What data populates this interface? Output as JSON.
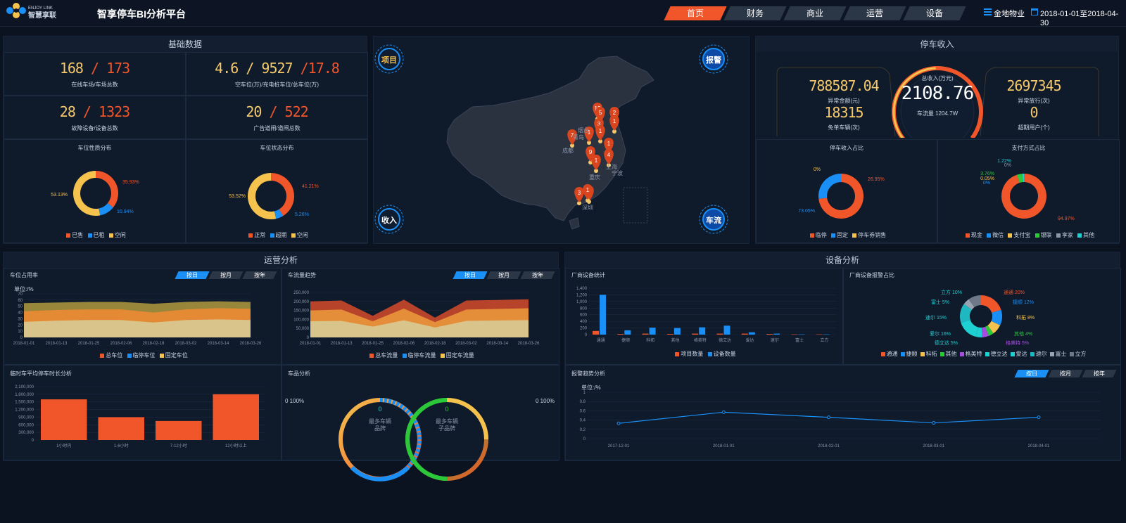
{
  "header": {
    "logo_top": "ENJOY LINK",
    "logo_bottom": "智慧享联",
    "title": "智享停车BI分析平台",
    "nav": [
      "首页",
      "财务",
      "商业",
      "运营",
      "设备"
    ],
    "company": "金地物业",
    "date_range": "2018-01-01至2018-04-30"
  },
  "basic": {
    "title": "基础数据",
    "stats": [
      {
        "a": "168",
        "sep": " / ",
        "b": "173",
        "label": "在线车场/车场总数"
      },
      {
        "a": "4.6 / 9527",
        "sep": " /",
        "b": "17.8",
        "label": "空车位(万)/充电桩车位/总车位(万)"
      },
      {
        "a": "28",
        "sep": " / ",
        "b": "1323",
        "label": "故障设备/设备总数"
      },
      {
        "a": "20",
        "sep": " / ",
        "b": "522",
        "label": "广告道闸/道闸总数"
      }
    ]
  },
  "space_nature": {
    "title": "车位性质分布",
    "labels": [
      "35.93%",
      "10.94%",
      "53.13%"
    ],
    "legend": [
      "已售",
      "已租",
      "空闲"
    ],
    "chart_data": {
      "type": "pie",
      "categories": [
        "已售",
        "已租",
        "空闲"
      ],
      "values": [
        35.93,
        10.94,
        53.13
      ]
    }
  },
  "space_status": {
    "title": "车位状态分布",
    "labels": [
      "41.21%",
      "5.26%",
      "53.52%"
    ],
    "legend": [
      "正常",
      "超期",
      "空闲"
    ],
    "chart_data": {
      "type": "pie",
      "categories": [
        "正常",
        "超期",
        "空闲"
      ],
      "values": [
        41.21,
        5.26,
        53.52
      ]
    }
  },
  "map": {
    "buttons": [
      "项目",
      "报警",
      "收入",
      "车流"
    ],
    "pins": [
      "12",
      "5",
      "2",
      "1",
      "3",
      "7",
      "1",
      "1",
      "1",
      "9",
      "4",
      "1",
      "1",
      "3",
      "1"
    ],
    "cities": [
      "烟台",
      "青岛",
      "成都",
      "上海",
      "重庆",
      "宁波",
      "深圳"
    ]
  },
  "income": {
    "title": "停车收入",
    "left": [
      {
        "value": "788587.04",
        "label": "异常金额(元)"
      },
      {
        "value": "18315",
        "label": "免单车辆(次)"
      }
    ],
    "center": {
      "label": "总收入(万元)",
      "value": "2108.76",
      "sub": "车流量 1204.7W"
    },
    "right": [
      {
        "value": "2697345",
        "label": "异常放行(次)"
      },
      {
        "value": "0",
        "label": "超期用户(个)"
      }
    ]
  },
  "income_share": {
    "title": "停车收入占比",
    "labels": [
      "0%",
      "26.95%",
      "73.05%"
    ],
    "legend": [
      "临停",
      "固定",
      "停车券销售"
    ],
    "chart_data": {
      "type": "pie",
      "categories": [
        "临停",
        "固定",
        "停车券销售"
      ],
      "values": [
        73.05,
        26.95,
        0
      ]
    }
  },
  "pay_share": {
    "title": "支付方式占比",
    "labels": [
      "1.22%",
      "0%",
      "3.76%",
      "0.05%",
      "0%",
      "94.97%"
    ],
    "legend": [
      "现金",
      "微信",
      "支付宝",
      "银联",
      "享家",
      "其他"
    ],
    "chart_data": {
      "type": "pie",
      "categories": [
        "现金",
        "微信",
        "支付宝",
        "银联",
        "享家",
        "其他"
      ],
      "values": [
        94.97,
        0,
        0.05,
        3.76,
        0,
        1.22
      ]
    }
  },
  "ops": {
    "title": "运营分析",
    "tabs": [
      "按日",
      "按月",
      "按年"
    ],
    "occupancy": {
      "title": "车位占用率",
      "unit": "单位:/%",
      "legend": [
        "总车位",
        "临停车位",
        "固定车位"
      ],
      "chart_data": {
        "type": "area",
        "x": [
          "2018-01-01",
          "2018-01-13",
          "2018-01-25",
          "2018-02-06",
          "2018-02-18",
          "2018-03-02",
          "2018-03-14",
          "2018-03-26"
        ],
        "ylim": [
          0,
          70
        ],
        "yticks": [
          "70",
          "60",
          "50",
          "40",
          "30",
          "20",
          "10",
          "0"
        ],
        "series": [
          {
            "name": "总车位",
            "values": [
              55,
              56,
              57,
              57,
              54,
              57,
              58,
              57
            ]
          },
          {
            "name": "临停车位",
            "values": [
              42,
              44,
              45,
              45,
              40,
              45,
              47,
              46
            ]
          },
          {
            "name": "固定车位",
            "values": [
              25,
              27,
              28,
              28,
              24,
              28,
              29,
              28
            ]
          }
        ]
      }
    },
    "traffic": {
      "title": "车流量趋势",
      "legend": [
        "总车流量",
        "临停车流量",
        "固定车流量"
      ],
      "chart_data": {
        "type": "area",
        "x": [
          "2018-01-01",
          "2018-01-13",
          "2018-01-25",
          "2018-02-06",
          "2018-02-18",
          "2018-03-02",
          "2018-03-14",
          "2018-03-26"
        ],
        "ylim": [
          0,
          250000
        ],
        "yticks": [
          "250,000",
          "200,000",
          "150,000",
          "100,000",
          "50,000",
          "0"
        ],
        "series": [
          {
            "name": "总车流量",
            "values": [
              200000,
              205000,
              120000,
              210000,
              110000,
              205000,
              208000,
              212000
            ]
          },
          {
            "name": "临停车流量",
            "values": [
              150000,
              155000,
              90000,
              160000,
              85000,
              155000,
              158000,
              162000
            ]
          },
          {
            "name": "固定车流量",
            "values": [
              90000,
              92000,
              60000,
              95000,
              55000,
              92000,
              94000,
              96000
            ]
          }
        ]
      }
    },
    "duration": {
      "title": "临时车平均停车时长分析",
      "chart_data": {
        "type": "bar",
        "categories": [
          "1小时内",
          "1-6小时",
          "7-12小时",
          "12小时以上"
        ],
        "values": [
          1600000,
          900000,
          750000,
          1800000
        ],
        "ylim": [
          0,
          2100000
        ],
        "yticks": [
          "2,100,000",
          "1,800,000",
          "1,500,000",
          "1,200,000",
          "900,000",
          "600,000",
          "300,000",
          "0"
        ]
      }
    },
    "car_brand": {
      "title": "车品分析",
      "left_pct": "0 100%",
      "right_pct": "0 100%",
      "brand": {
        "value": "0",
        "line1": "最多车辆",
        "line2": "品牌"
      },
      "sub_brand": {
        "value": "0",
        "line1": "最多车辆",
        "line2": "子品牌"
      }
    }
  },
  "device": {
    "title": "设备分析",
    "tabs": [
      "按日",
      "按月",
      "按年"
    ],
    "vendor": {
      "title": "厂商设备统计",
      "legend": [
        "项目数量",
        "设备数量"
      ],
      "chart_data": {
        "type": "bar",
        "categories": [
          "通通",
          "捷顺",
          "科拓",
          "其他",
          "格美特",
          "德立达",
          "爱达",
          "速尔",
          "富士",
          "立方"
        ],
        "ylim": [
          0,
          1400
        ],
        "yticks": [
          "1,400",
          "1,200",
          "1,000",
          "800",
          "600",
          "400",
          "200",
          "0"
        ],
        "series": [
          {
            "name": "项目数量",
            "values": [
              110,
              20,
              30,
              20,
              30,
              30,
              30,
              20,
              10,
              10
            ]
          },
          {
            "name": "设备数量",
            "values": [
              1200,
              130,
              210,
              200,
              220,
              270,
              70,
              30,
              10,
              10
            ]
          }
        ]
      }
    },
    "vendor_alarm": {
      "title": "厂商设备报警占比",
      "labels": [
        "通通 20%",
        "捷顺 12%",
        "科拓 8%",
        "其他  4%",
        "格美特 5%",
        "德立达 5%",
        "爱尔 16%",
        "速尔 15%",
        "富士 5%",
        "立方 10%"
      ],
      "legend": [
        "通通",
        "捷顺",
        "科拓",
        "其他",
        "格美特",
        "德立达",
        "爱达",
        "速尔",
        "富士",
        "立方"
      ],
      "chart_data": {
        "type": "pie",
        "categories": [
          "通通",
          "捷顺",
          "科拓",
          "其他",
          "格美特",
          "德立达",
          "爱尔",
          "速尔",
          "富士",
          "立方"
        ],
        "values": [
          20,
          12,
          8,
          4,
          5,
          5,
          16,
          15,
          5,
          10
        ]
      }
    },
    "alarm_trend": {
      "title": "报警趋势分析",
      "unit": "单位:/%",
      "chart_data": {
        "type": "line",
        "x": [
          "2017-12-01",
          "2018-01-01",
          "2018-02-01",
          "2018-03-01",
          "2018-04-01"
        ],
        "values": [
          0.33,
          0.57,
          0.46,
          0.34,
          0.46
        ],
        "ylim": [
          0,
          1
        ],
        "yticks": [
          "1",
          "0.8",
          "0.6",
          "0.4",
          "0.2",
          "0"
        ]
      }
    }
  },
  "colors": {
    "orange": "#f0562a",
    "blue": "#1a8ff5",
    "yellow": "#f5c24e",
    "green": "#2bc83a",
    "purple": "#a64de0",
    "cyan": "#1fd0d3",
    "gray": "#8a96a8"
  }
}
